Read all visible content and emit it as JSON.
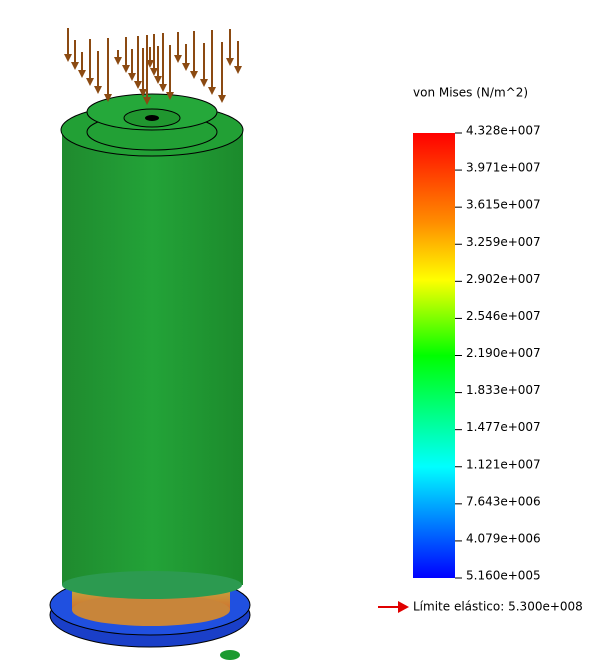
{
  "legend": {
    "title": "von Mises (N/m^2)",
    "labels": [
      "4.328e+007",
      "3.971e+007",
      "3.615e+007",
      "3.259e+007",
      "2.902e+007",
      "2.546e+007",
      "2.190e+007",
      "1.833e+007",
      "1.477e+007",
      "1.121e+007",
      "7.643e+006",
      "4.079e+006",
      "5.160e+005"
    ]
  },
  "yield_limit": "Límite elástico: 5.300e+008"
}
